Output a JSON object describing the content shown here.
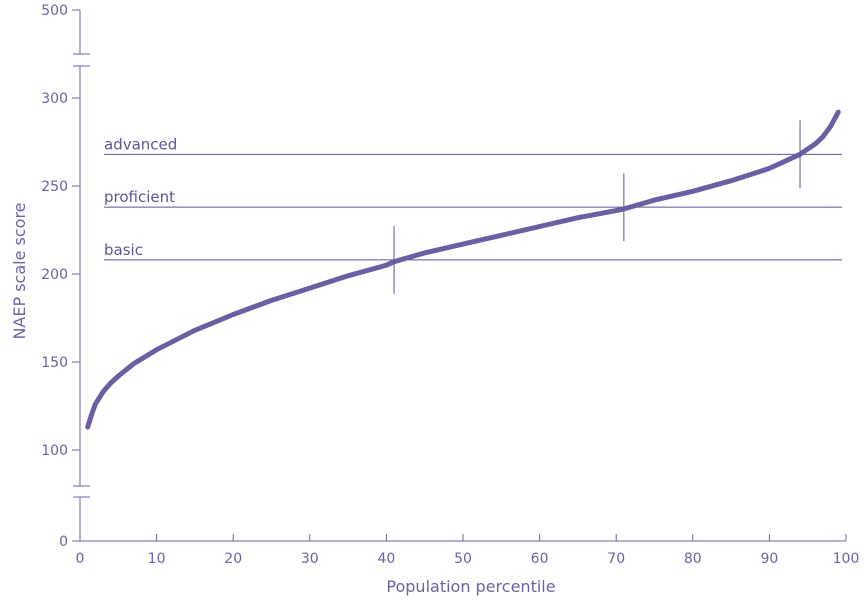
{
  "chart_data": {
    "type": "line",
    "xlabel": "Population percentile",
    "ylabel": "NAEP scale score",
    "xlim": [
      0,
      100
    ],
    "ylim": [
      0,
      500
    ],
    "axis_breaks": [
      "0-75",
      "325-500"
    ],
    "x_ticks": [
      0,
      10,
      20,
      30,
      40,
      50,
      60,
      70,
      80,
      90,
      100
    ],
    "y_ticks": [
      0,
      100,
      150,
      200,
      250,
      300,
      500
    ],
    "series": [
      {
        "color": "#6a5fa3",
        "x": [
          1,
          1.5,
          2,
          3,
          4,
          5,
          7,
          10,
          15,
          20,
          25,
          30,
          35,
          40,
          41,
          45,
          50,
          55,
          60,
          65,
          70,
          71,
          75,
          80,
          85,
          90,
          92,
          94,
          95,
          96,
          97,
          98,
          99
        ],
        "y": [
          113,
          120,
          126,
          133,
          138,
          142,
          149,
          157,
          168,
          177,
          185,
          192,
          199,
          205,
          207,
          212,
          217,
          222,
          227,
          232,
          236,
          237,
          242,
          247,
          253,
          260,
          264,
          268,
          271,
          274,
          278,
          284,
          292
        ]
      }
    ],
    "levels": [
      {
        "label": "advanced",
        "score": 268,
        "percentile": 94
      },
      {
        "label": "proficient",
        "score": 238,
        "percentile": 71
      },
      {
        "label": "basic",
        "score": 208,
        "percentile": 41
      }
    ]
  }
}
